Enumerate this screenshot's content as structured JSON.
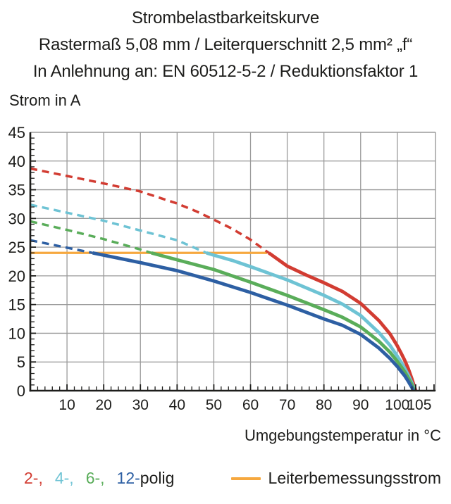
{
  "title": {
    "line1": "Strombelastbarkeitskurve",
    "line2": "Rastermaß 5,08 mm / Leiterquerschnitt 2,5 mm² „f“",
    "line3": "In Anlehnung an: EN 60512-5-2 / Reduktionsfaktor 1"
  },
  "chart_data": {
    "type": "line",
    "title": "Strombelastbarkeitskurve",
    "xlabel": "Umgebungstemperatur in °C",
    "ylabel": "Strom in A",
    "xlim": [
      0,
      110.4
    ],
    "ylim": [
      0,
      45
    ],
    "grid": true,
    "grid_color": "#9a9a9a",
    "axis_color": "#1d1d1b",
    "x_ticks": [
      10,
      20,
      30,
      40,
      50,
      60,
      70,
      80,
      90,
      100,
      105
    ],
    "y_ticks": [
      0,
      5,
      10,
      15,
      20,
      25,
      30,
      35,
      40,
      45
    ],
    "x_gridlines": [
      10,
      20,
      30,
      40,
      50,
      60,
      70,
      80,
      90,
      100
    ],
    "y_gridlines": [
      5,
      10,
      15,
      20,
      25,
      30,
      35,
      40
    ],
    "x_minor_tick_step": 2,
    "y_minor_tick_step": 1,
    "rated_current": {
      "label": "Leiterbemessungsstrom",
      "value": 24,
      "x_start": 0,
      "x_end": 64.5,
      "color": "#f6a83f"
    },
    "series": [
      {
        "name": "2-polig",
        "color": "#d23c32",
        "style_above_rated": "dashed",
        "solid_from": 65,
        "points": [
          [
            0,
            38.7
          ],
          [
            10,
            37.4
          ],
          [
            20,
            36.1
          ],
          [
            30,
            34.7
          ],
          [
            40,
            32.6
          ],
          [
            45,
            31.3
          ],
          [
            50,
            29.8
          ],
          [
            55,
            28.2
          ],
          [
            60,
            26.3
          ],
          [
            65,
            24
          ],
          [
            70,
            21.7
          ],
          [
            75,
            20.2
          ],
          [
            80,
            18.8
          ],
          [
            85,
            17.3
          ],
          [
            90,
            15.2
          ],
          [
            95,
            12.2
          ],
          [
            98,
            9.9
          ],
          [
            100,
            7.8
          ],
          [
            101,
            6.6
          ],
          [
            102,
            5.3
          ],
          [
            103,
            3.8
          ],
          [
            104,
            2.0
          ],
          [
            105,
            0
          ]
        ]
      },
      {
        "name": "4-polig",
        "color": "#6ec3d4",
        "style_above_rated": "dashed",
        "solid_from": 48,
        "points": [
          [
            0,
            32.4
          ],
          [
            10,
            31.0
          ],
          [
            20,
            29.6
          ],
          [
            30,
            27.9
          ],
          [
            40,
            26.2
          ],
          [
            48,
            24
          ],
          [
            50,
            23.6
          ],
          [
            55,
            22.7
          ],
          [
            60,
            21.6
          ],
          [
            70,
            19.3
          ],
          [
            80,
            16.6
          ],
          [
            85,
            15.1
          ],
          [
            90,
            13.1
          ],
          [
            95,
            10.1
          ],
          [
            98,
            7.9
          ],
          [
            100,
            6.0
          ],
          [
            101,
            5.0
          ],
          [
            102,
            3.9
          ],
          [
            103,
            2.7
          ],
          [
            104,
            1.3
          ],
          [
            104.8,
            0
          ]
        ]
      },
      {
        "name": "6-polig",
        "color": "#5aad5a",
        "style_above_rated": "dashed",
        "solid_from": 33,
        "points": [
          [
            0,
            29.5
          ],
          [
            10,
            28.0
          ],
          [
            20,
            26.4
          ],
          [
            30,
            24.6
          ],
          [
            33,
            24
          ],
          [
            40,
            22.8
          ],
          [
            50,
            21.1
          ],
          [
            60,
            18.9
          ],
          [
            70,
            16.6
          ],
          [
            80,
            14.1
          ],
          [
            85,
            12.8
          ],
          [
            90,
            11.1
          ],
          [
            95,
            8.6
          ],
          [
            98,
            6.7
          ],
          [
            100,
            5.1
          ],
          [
            101,
            4.2
          ],
          [
            102,
            3.3
          ],
          [
            103,
            2.2
          ],
          [
            104,
            1.0
          ],
          [
            104.6,
            0
          ]
        ]
      },
      {
        "name": "12-polig",
        "color": "#2d5fa3",
        "style_above_rated": "dashed",
        "solid_from": 17,
        "points": [
          [
            0,
            26.2
          ],
          [
            10,
            24.9
          ],
          [
            17,
            24
          ],
          [
            20,
            23.6
          ],
          [
            30,
            22.3
          ],
          [
            40,
            20.9
          ],
          [
            50,
            19.1
          ],
          [
            60,
            17.1
          ],
          [
            70,
            14.9
          ],
          [
            80,
            12.5
          ],
          [
            85,
            11.4
          ],
          [
            90,
            9.8
          ],
          [
            95,
            7.4
          ],
          [
            98,
            5.6
          ],
          [
            100,
            4.2
          ],
          [
            101,
            3.4
          ],
          [
            102,
            2.6
          ],
          [
            103,
            1.6
          ],
          [
            104,
            0.5
          ],
          [
            104.4,
            0
          ]
        ]
      }
    ]
  },
  "legend": {
    "poles": [
      {
        "label": "2-,",
        "color": "#d23c32"
      },
      {
        "label": "4-,",
        "color": "#6ec3d4"
      },
      {
        "label": "6-,",
        "color": "#5aad5a"
      },
      {
        "label": "12-",
        "color": "#2d5fa3"
      }
    ],
    "poles_suffix": "polig",
    "rated_label": "Leiterbemessungsstrom"
  }
}
